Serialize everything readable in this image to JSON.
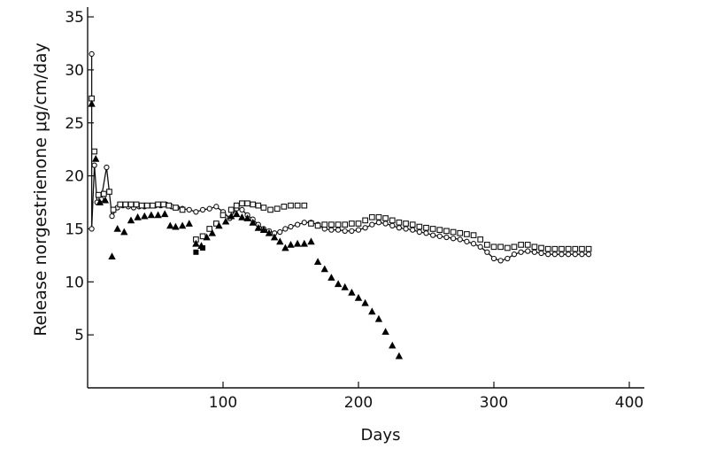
{
  "chart_data": {
    "type": "scatter",
    "xlabel": "Days",
    "ylabel": "Release norgestrienone μg/cm/day",
    "xlim": [
      0,
      410
    ],
    "ylim": [
      0,
      37
    ],
    "xticks": [
      100,
      200,
      300,
      400
    ],
    "yticks": [
      5,
      10,
      15,
      20,
      25,
      30,
      35
    ],
    "grid": false,
    "series": [
      {
        "marker": "circle-open",
        "connected": true,
        "color": "#111111",
        "points": [
          [
            3,
            31.5
          ],
          [
            3,
            15.0
          ],
          [
            5,
            21.0
          ],
          [
            7,
            17.5
          ],
          [
            10,
            17.8
          ],
          [
            14,
            20.8
          ],
          [
            18,
            16.2
          ],
          [
            22,
            17.0
          ],
          [
            26,
            17.2
          ],
          [
            30,
            17.1
          ],
          [
            34,
            17.0
          ],
          [
            38,
            17.1
          ],
          [
            42,
            17.1
          ],
          [
            46,
            17.2
          ],
          [
            50,
            17.2
          ],
          [
            54,
            17.2
          ],
          [
            58,
            17.3
          ],
          [
            62,
            17.1
          ],
          [
            66,
            17.0
          ],
          [
            70,
            16.9
          ],
          [
            75,
            16.8
          ],
          [
            80,
            16.6
          ],
          [
            85,
            16.8
          ],
          [
            90,
            16.9
          ],
          [
            95,
            17.1
          ],
          [
            100,
            16.6
          ],
          [
            105,
            16.0
          ],
          [
            110,
            16.9
          ],
          [
            114,
            16.8
          ],
          [
            118,
            16.3
          ],
          [
            122,
            15.9
          ],
          [
            126,
            15.4
          ],
          [
            130,
            15.0
          ],
          [
            134,
            14.8
          ],
          [
            138,
            14.6
          ],
          [
            142,
            14.7
          ],
          [
            146,
            15.0
          ],
          [
            150,
            15.2
          ],
          [
            155,
            15.4
          ],
          [
            160,
            15.6
          ],
          [
            165,
            15.6
          ],
          [
            170,
            15.4
          ],
          [
            175,
            15.0
          ],
          [
            180,
            14.9
          ],
          [
            185,
            14.9
          ],
          [
            190,
            14.8
          ],
          [
            195,
            14.8
          ],
          [
            200,
            14.9
          ],
          [
            205,
            15.1
          ],
          [
            210,
            15.4
          ],
          [
            215,
            15.6
          ],
          [
            220,
            15.5
          ],
          [
            225,
            15.3
          ],
          [
            230,
            15.1
          ],
          [
            235,
            15.0
          ],
          [
            240,
            14.9
          ],
          [
            245,
            14.7
          ],
          [
            250,
            14.6
          ],
          [
            255,
            14.4
          ],
          [
            260,
            14.3
          ],
          [
            265,
            14.2
          ],
          [
            270,
            14.1
          ],
          [
            275,
            14.0
          ],
          [
            280,
            13.8
          ],
          [
            285,
            13.6
          ],
          [
            290,
            13.3
          ],
          [
            295,
            12.8
          ],
          [
            300,
            12.2
          ],
          [
            305,
            12.0
          ],
          [
            310,
            12.2
          ],
          [
            315,
            12.6
          ],
          [
            320,
            12.8
          ],
          [
            325,
            12.9
          ],
          [
            330,
            12.8
          ],
          [
            335,
            12.7
          ],
          [
            340,
            12.6
          ],
          [
            345,
            12.6
          ],
          [
            350,
            12.6
          ],
          [
            355,
            12.6
          ],
          [
            360,
            12.6
          ],
          [
            365,
            12.6
          ],
          [
            370,
            12.6
          ]
        ]
      },
      {
        "marker": "square-open",
        "connected": false,
        "color": "#111111",
        "points": [
          [
            3,
            27.3
          ],
          [
            5,
            22.3
          ],
          [
            8,
            18.2
          ],
          [
            12,
            18.3
          ],
          [
            16,
            18.5
          ],
          [
            19,
            16.8
          ],
          [
            24,
            17.3
          ],
          [
            28,
            17.3
          ],
          [
            32,
            17.3
          ],
          [
            36,
            17.3
          ],
          [
            40,
            17.2
          ],
          [
            44,
            17.2
          ],
          [
            48,
            17.2
          ],
          [
            52,
            17.3
          ],
          [
            56,
            17.3
          ],
          [
            60,
            17.2
          ],
          [
            65,
            17.0
          ],
          [
            70,
            16.8
          ],
          [
            80,
            14.0
          ],
          [
            85,
            14.3
          ],
          [
            90,
            15.0
          ],
          [
            95,
            15.5
          ],
          [
            100,
            16.3
          ],
          [
            106,
            16.8
          ],
          [
            110,
            17.2
          ],
          [
            114,
            17.4
          ],
          [
            118,
            17.4
          ],
          [
            122,
            17.3
          ],
          [
            126,
            17.2
          ],
          [
            130,
            17.0
          ],
          [
            135,
            16.8
          ],
          [
            140,
            16.9
          ],
          [
            145,
            17.1
          ],
          [
            150,
            17.2
          ],
          [
            155,
            17.2
          ],
          [
            160,
            17.2
          ],
          [
            165,
            15.5
          ],
          [
            170,
            15.3
          ],
          [
            175,
            15.4
          ],
          [
            180,
            15.4
          ],
          [
            185,
            15.4
          ],
          [
            190,
            15.4
          ],
          [
            195,
            15.5
          ],
          [
            200,
            15.5
          ],
          [
            205,
            15.8
          ],
          [
            210,
            16.1
          ],
          [
            215,
            16.1
          ],
          [
            220,
            16.0
          ],
          [
            225,
            15.8
          ],
          [
            230,
            15.6
          ],
          [
            235,
            15.5
          ],
          [
            240,
            15.4
          ],
          [
            245,
            15.2
          ],
          [
            250,
            15.1
          ],
          [
            255,
            15.0
          ],
          [
            260,
            14.9
          ],
          [
            265,
            14.8
          ],
          [
            270,
            14.7
          ],
          [
            275,
            14.6
          ],
          [
            280,
            14.5
          ],
          [
            285,
            14.4
          ],
          [
            290,
            14.0
          ],
          [
            295,
            13.5
          ],
          [
            300,
            13.3
          ],
          [
            305,
            13.3
          ],
          [
            310,
            13.2
          ],
          [
            315,
            13.3
          ],
          [
            320,
            13.5
          ],
          [
            325,
            13.5
          ],
          [
            330,
            13.3
          ],
          [
            335,
            13.2
          ],
          [
            340,
            13.1
          ],
          [
            345,
            13.1
          ],
          [
            350,
            13.1
          ],
          [
            355,
            13.1
          ],
          [
            360,
            13.1
          ],
          [
            365,
            13.1
          ],
          [
            370,
            13.1
          ]
        ]
      },
      {
        "marker": "triangle-filled",
        "connected": false,
        "color": "#000000",
        "points": [
          [
            3,
            26.8
          ],
          [
            6,
            21.6
          ],
          [
            9,
            17.5
          ],
          [
            13,
            17.7
          ],
          [
            18,
            12.4
          ],
          [
            22,
            15.0
          ],
          [
            27,
            14.7
          ],
          [
            32,
            15.8
          ],
          [
            37,
            16.1
          ],
          [
            42,
            16.2
          ],
          [
            47,
            16.3
          ],
          [
            52,
            16.3
          ],
          [
            57,
            16.4
          ],
          [
            61,
            15.3
          ],
          [
            65,
            15.2
          ],
          [
            70,
            15.3
          ],
          [
            75,
            15.5
          ],
          [
            80,
            13.6
          ],
          [
            84,
            13.4
          ],
          [
            88,
            14.2
          ],
          [
            92,
            14.6
          ],
          [
            97,
            15.3
          ],
          [
            102,
            15.7
          ],
          [
            106,
            16.2
          ],
          [
            110,
            16.4
          ],
          [
            114,
            16.1
          ],
          [
            118,
            16.0
          ],
          [
            122,
            15.6
          ],
          [
            126,
            15.1
          ],
          [
            130,
            14.9
          ],
          [
            134,
            14.6
          ],
          [
            138,
            14.2
          ],
          [
            142,
            13.8
          ],
          [
            146,
            13.2
          ],
          [
            150,
            13.5
          ],
          [
            155,
            13.6
          ],
          [
            160,
            13.6
          ],
          [
            165,
            13.8
          ],
          [
            170,
            11.9
          ],
          [
            175,
            11.2
          ],
          [
            180,
            10.4
          ],
          [
            185,
            9.8
          ],
          [
            190,
            9.5
          ],
          [
            195,
            9.0
          ],
          [
            200,
            8.5
          ],
          [
            205,
            8.0
          ],
          [
            210,
            7.2
          ],
          [
            215,
            6.5
          ],
          [
            220,
            5.3
          ],
          [
            225,
            4.0
          ],
          [
            230,
            3.0
          ]
        ]
      },
      {
        "marker": "square-filled",
        "connected": false,
        "color": "#000000",
        "points": [
          [
            80,
            12.8
          ],
          [
            85,
            13.2
          ]
        ]
      }
    ]
  }
}
